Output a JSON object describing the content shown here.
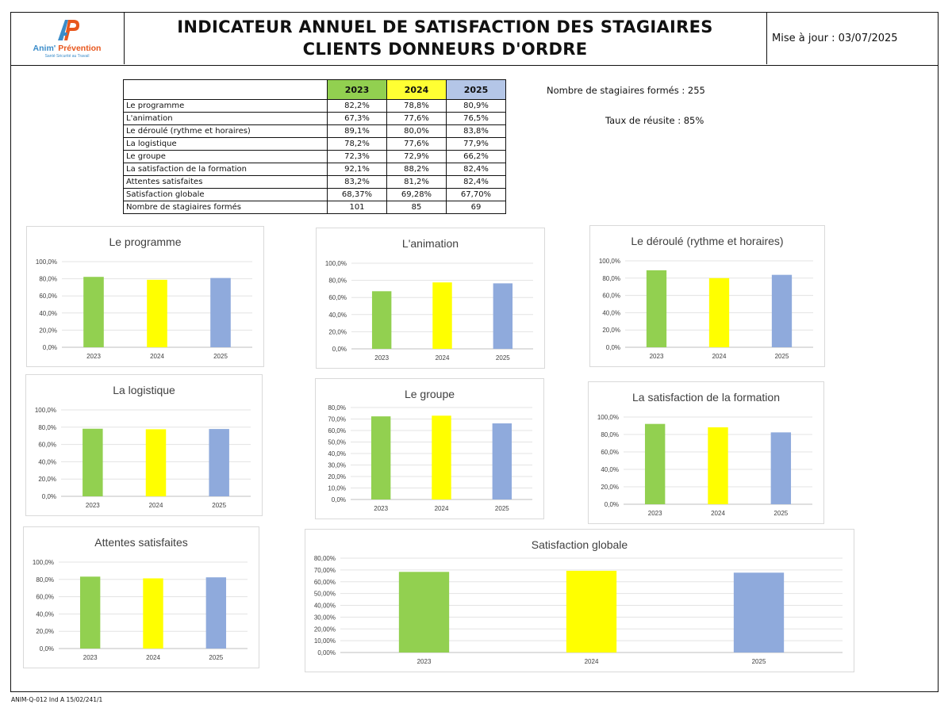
{
  "header": {
    "title_line1": "INDICATEUR ANNUEL DE SATISFACTION DES STAGIAIRES",
    "title_line2": "CLIENTS DONNEURS D'ORDRE",
    "update_text": "Mise à jour : 03/07/2025",
    "logo": {
      "brand_part1": "Anim'",
      "brand_part2": "Prévention",
      "tagline": "Santé Sécurité au Travail",
      "colors": {
        "blue": "#3a8cc9",
        "orange": "#e8571d"
      }
    }
  },
  "table": {
    "years": [
      "2023",
      "2024",
      "2025"
    ],
    "year_colors": [
      "#92d050",
      "#ffff33",
      "#b4c6e7"
    ],
    "rows": [
      {
        "label": "Le programme",
        "values": [
          "82,2%",
          "78,8%",
          "80,9%"
        ]
      },
      {
        "label": "L'animation",
        "values": [
          "67,3%",
          "77,6%",
          "76,5%"
        ]
      },
      {
        "label": "Le déroulé (rythme et horaires)",
        "values": [
          "89,1%",
          "80,0%",
          "83,8%"
        ]
      },
      {
        "label": "La logistique",
        "values": [
          "78,2%",
          "77,6%",
          "77,9%"
        ]
      },
      {
        "label": "Le groupe",
        "values": [
          "72,3%",
          "72,9%",
          "66,2%"
        ]
      },
      {
        "label": "La satisfaction de la  formation",
        "values": [
          "92,1%",
          "88,2%",
          "82,4%"
        ]
      },
      {
        "label": "Attentes satisfaites",
        "values": [
          "83,2%",
          "81,2%",
          "82,4%"
        ]
      },
      {
        "label": "Satisfaction globale",
        "values": [
          "68,37%",
          "69,28%",
          "67,70%"
        ]
      },
      {
        "label": "Nombre de stagiaires formés",
        "values": [
          "101",
          "85",
          "69"
        ]
      }
    ]
  },
  "stats": {
    "trainees": "Nombre de stagiaires formés :  255",
    "success": "Taux de réusite :  85%"
  },
  "bar_colors": [
    "#92d050",
    "#ffff00",
    "#8faadc"
  ],
  "chart_data": [
    {
      "type": "bar",
      "title": "Le programme",
      "categories": [
        "2023",
        "2024",
        "2025"
      ],
      "values": [
        82.2,
        78.8,
        80.9
      ],
      "ylim": [
        0,
        100
      ],
      "yticks": [
        "0,0%",
        "20,0%",
        "40,0%",
        "60,0%",
        "80,0%",
        "100,0%"
      ],
      "grid": true
    },
    {
      "type": "bar",
      "title": "L'animation",
      "categories": [
        "2023",
        "2024",
        "2025"
      ],
      "values": [
        67.3,
        77.6,
        76.5
      ],
      "ylim": [
        0,
        100
      ],
      "yticks": [
        "0,0%",
        "20,0%",
        "40,0%",
        "60,0%",
        "80,0%",
        "100,0%"
      ],
      "grid": true
    },
    {
      "type": "bar",
      "title": "Le déroulé (rythme et horaires)",
      "categories": [
        "2023",
        "2024",
        "2025"
      ],
      "values": [
        89.1,
        80.0,
        83.8
      ],
      "ylim": [
        0,
        100
      ],
      "yticks": [
        "0,0%",
        "20,0%",
        "40,0%",
        "60,0%",
        "80,0%",
        "100,0%"
      ],
      "grid": true
    },
    {
      "type": "bar",
      "title": "La logistique",
      "categories": [
        "2023",
        "2024",
        "2025"
      ],
      "values": [
        78.2,
        77.6,
        77.9
      ],
      "ylim": [
        0,
        100
      ],
      "yticks": [
        "0,0%",
        "20,0%",
        "40,0%",
        "60,0%",
        "80,0%",
        "100,0%"
      ],
      "grid": true
    },
    {
      "type": "bar",
      "title": "Le groupe",
      "categories": [
        "2023",
        "2024",
        "2025"
      ],
      "values": [
        72.3,
        72.9,
        66.2
      ],
      "ylim": [
        0,
        80
      ],
      "yticks": [
        "0,0%",
        "10,0%",
        "20,0%",
        "30,0%",
        "40,0%",
        "50,0%",
        "60,0%",
        "70,0%",
        "80,0%"
      ],
      "grid": true
    },
    {
      "type": "bar",
      "title": "La satisfaction de la  formation",
      "categories": [
        "2023",
        "2024",
        "2025"
      ],
      "values": [
        92.1,
        88.2,
        82.4
      ],
      "ylim": [
        0,
        100
      ],
      "yticks": [
        "0,0%",
        "20,0%",
        "40,0%",
        "60,0%",
        "80,0%",
        "100,0%"
      ],
      "grid": true
    },
    {
      "type": "bar",
      "title": "Attentes satisfaites",
      "categories": [
        "2023",
        "2024",
        "2025"
      ],
      "values": [
        83.2,
        81.2,
        82.4
      ],
      "ylim": [
        0,
        100
      ],
      "yticks": [
        "0,0%",
        "20,0%",
        "40,0%",
        "60,0%",
        "80,0%",
        "100,0%"
      ],
      "grid": true
    },
    {
      "type": "bar",
      "title": "Satisfaction globale",
      "categories": [
        "2023",
        "2024",
        "2025"
      ],
      "values": [
        68.37,
        69.28,
        67.7
      ],
      "ylim": [
        0,
        80
      ],
      "yticks": [
        "0,00%",
        "10,00%",
        "20,00%",
        "30,00%",
        "40,00%",
        "50,00%",
        "60,00%",
        "70,00%",
        "80,00%"
      ],
      "grid": true
    }
  ],
  "footer": "ANIM-Q-012 Ind A 15/02/241/1"
}
